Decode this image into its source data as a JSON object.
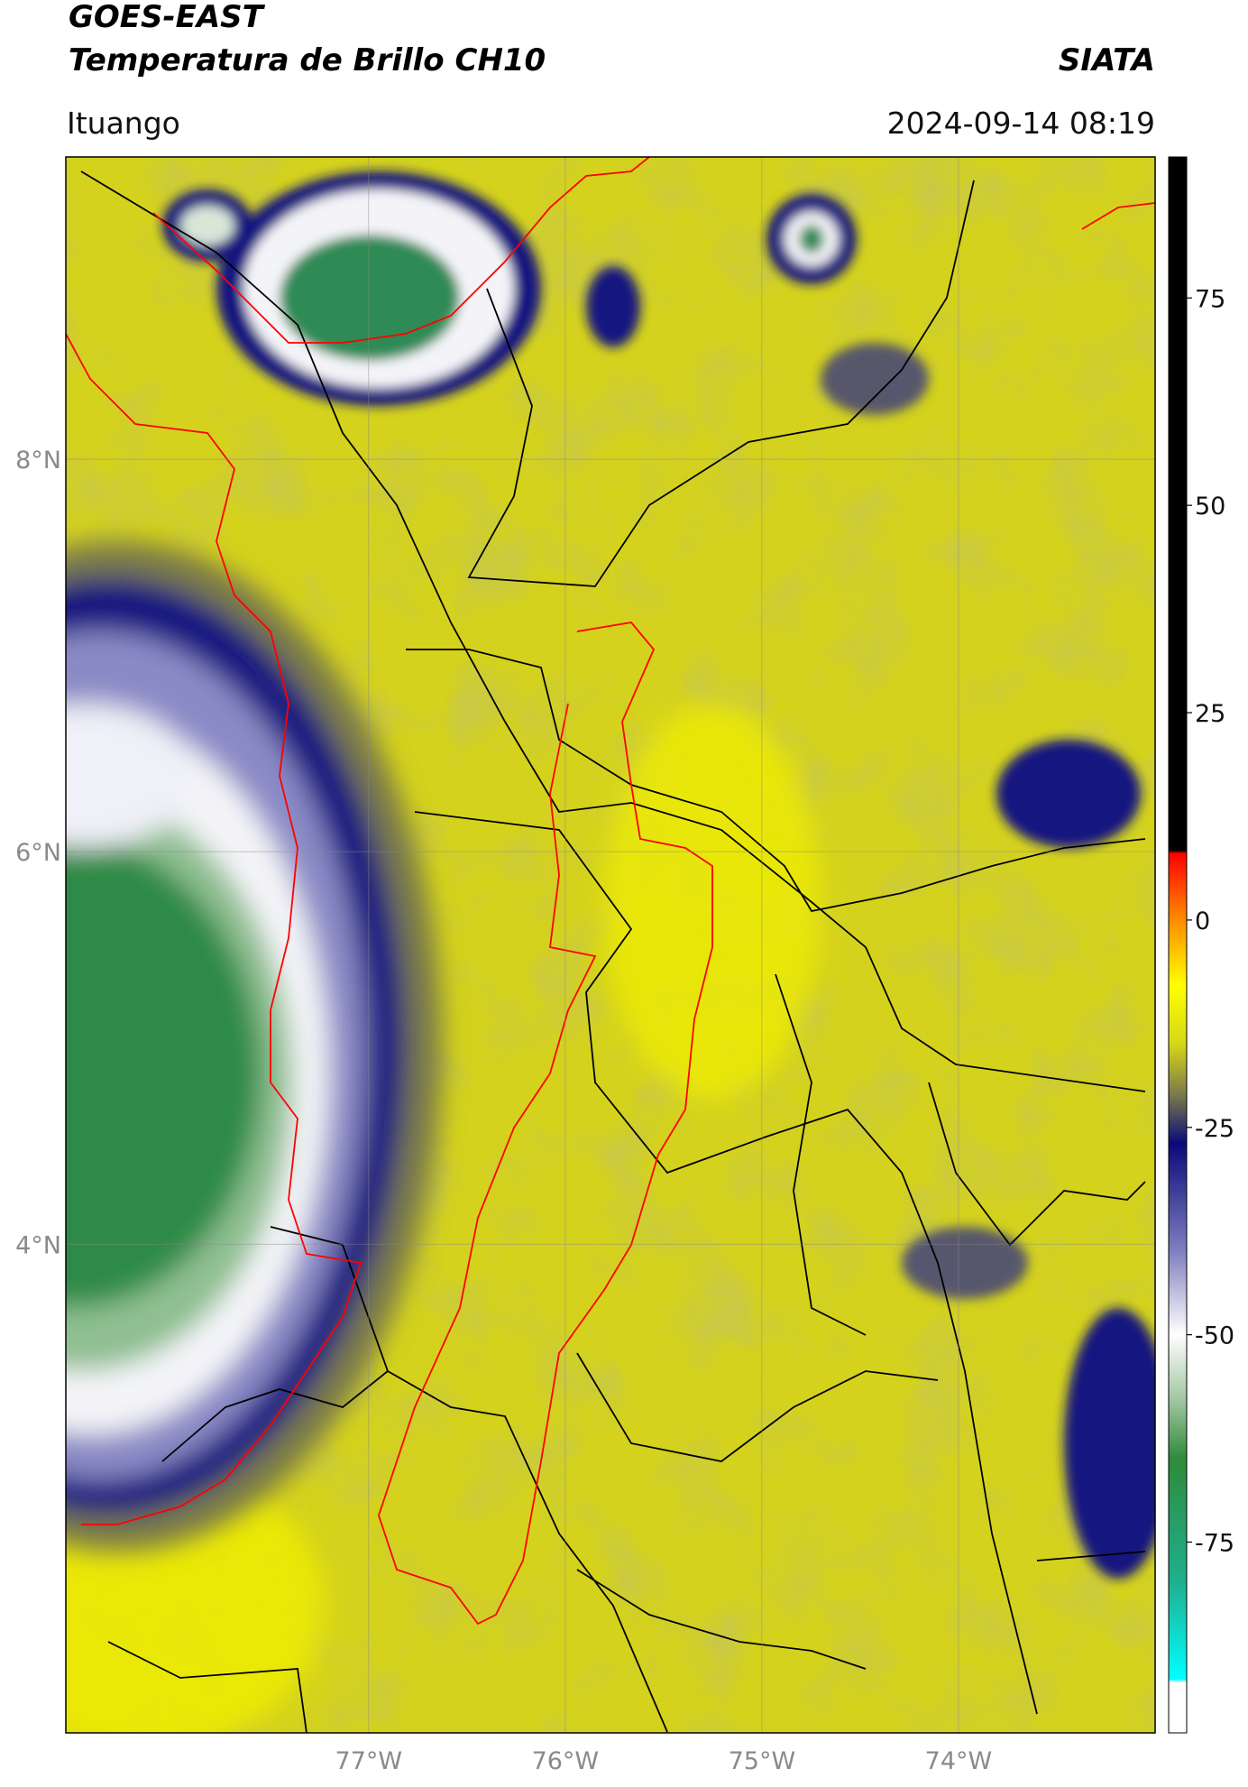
{
  "chart_data": {
    "type": "map",
    "title": "GOES-EAST",
    "subtitle": "Temperatura de Brillo CH10",
    "source": "SIATA",
    "location": "Ituango",
    "datetime": "2024-09-14 08:19",
    "xlim": [
      -78.54,
      -73.0
    ],
    "ylim": [
      1.51,
      9.54
    ],
    "xticks": [
      {
        "value": -77,
        "label": "77°W"
      },
      {
        "value": -76,
        "label": "76°W"
      },
      {
        "value": -75,
        "label": "75°W"
      },
      {
        "value": -74,
        "label": "74°W"
      }
    ],
    "yticks": [
      {
        "value": 8,
        "label": "8°N"
      },
      {
        "value": 6,
        "label": "6°N"
      },
      {
        "value": 4,
        "label": "4°N"
      }
    ],
    "colorbar_lim": [
      -98,
      92
    ],
    "colorbar_ticks": [
      75,
      50,
      25,
      0,
      -25,
      -50,
      -75
    ],
    "grid": true
  }
}
